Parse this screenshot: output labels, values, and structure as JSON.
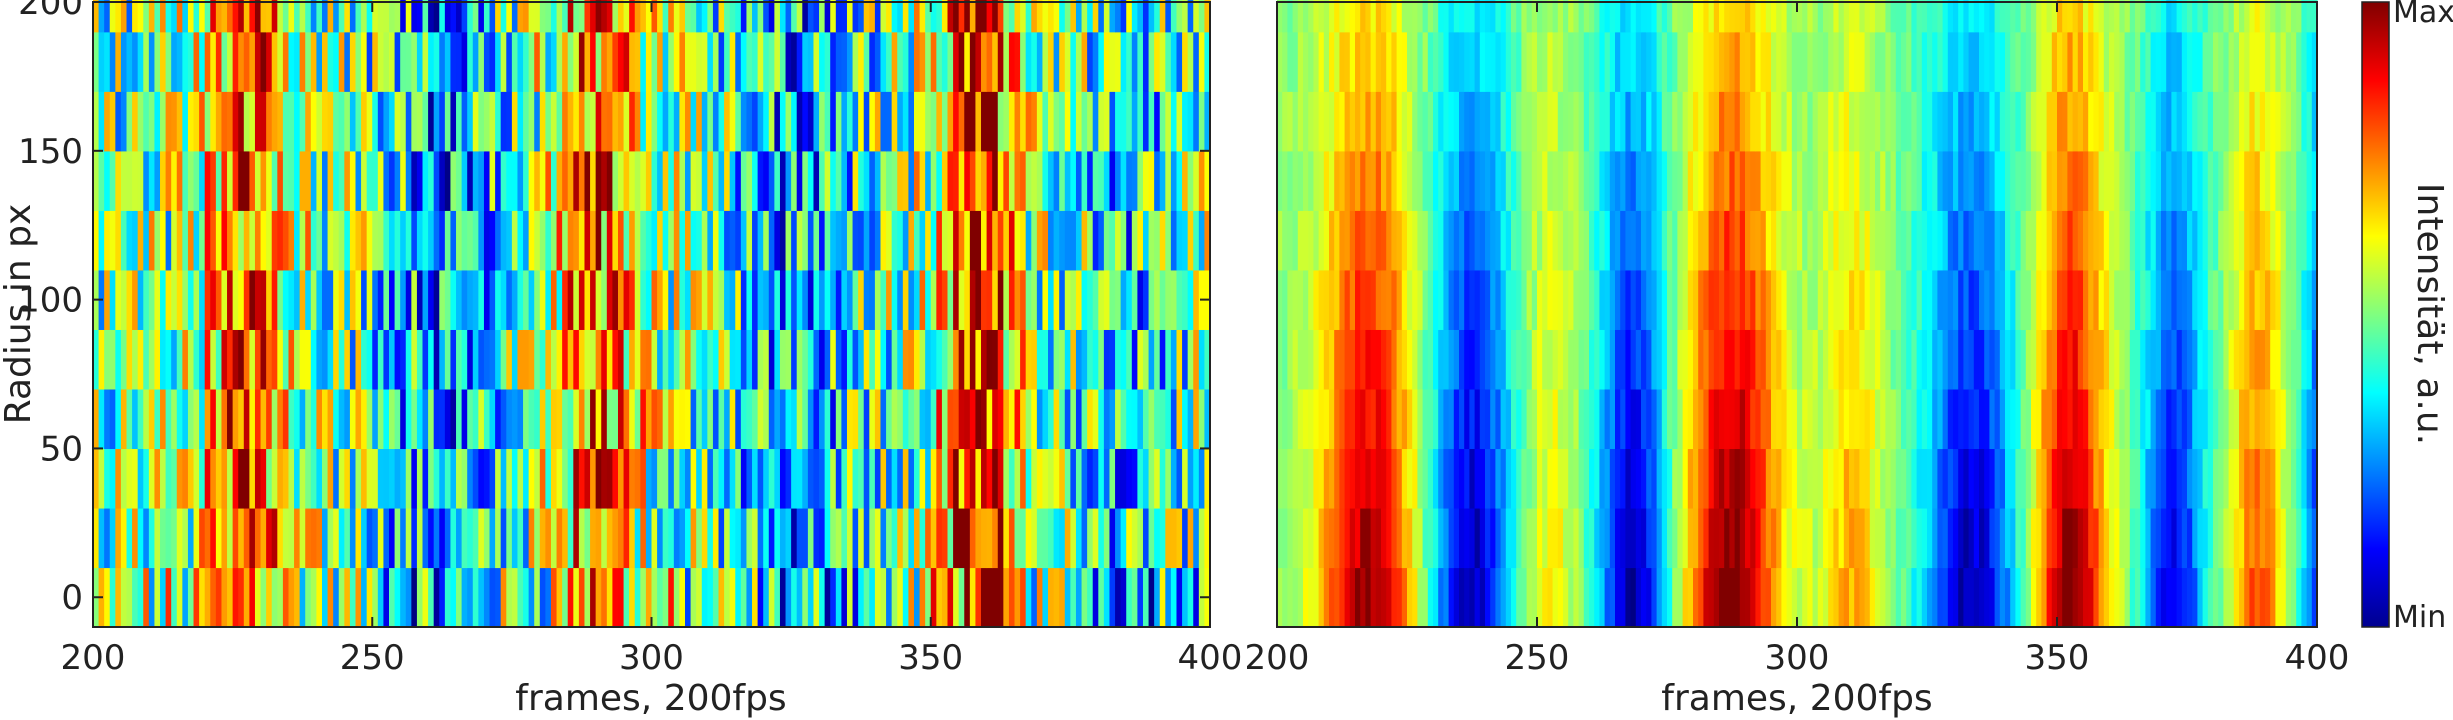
{
  "chart_data": [
    {
      "type": "heatmap",
      "panel": "left",
      "xlabel": "frames, 200fps",
      "ylabel": "Radius in px",
      "xlim": [
        200,
        400
      ],
      "ylim": [
        -10,
        200
      ],
      "x_ticks": [
        200,
        250,
        300,
        350,
        400
      ],
      "y_ticks": [
        0,
        50,
        100,
        150,
        200
      ],
      "x_tick_labels": [
        "200",
        "250",
        "300",
        "350",
        "400"
      ],
      "y_tick_labels": [
        "0",
        "50",
        "100",
        "150",
        "200"
      ],
      "radius_bins": [
        0,
        20,
        40,
        60,
        80,
        100,
        120,
        140,
        160,
        180,
        200
      ],
      "frame_range": [
        200,
        400
      ],
      "colormap": "jet",
      "description_of_values": "normalized intensity 0 (Min) to 1 (Max), mostly noisy stripes with hot bands near frames 220-235, 283-300 and 350-365"
    },
    {
      "type": "heatmap",
      "panel": "right",
      "xlabel": "frames, 200fps",
      "ylabel": "",
      "xlim": [
        200,
        400
      ],
      "ylim": [
        -10,
        200
      ],
      "x_ticks": [
        200,
        250,
        300,
        350,
        400
      ],
      "x_tick_labels": [
        "200",
        "250",
        "300",
        "350",
        "400"
      ],
      "radius_bins": [
        0,
        20,
        40,
        60,
        80,
        100,
        120,
        140,
        160,
        180,
        200
      ],
      "frame_range": [
        200,
        400
      ],
      "colormap": "jet",
      "description_of_values": "normalized intensity 0 (Min) to 1 (Max), smooth periodic bands: hot near frames 215, 285, 350; cold near 237, 268, 333, 370"
    }
  ],
  "colorbar": {
    "label": "Intensität, a.u.",
    "max_label": "Max",
    "min_label": "Min",
    "colormap": "jet"
  }
}
